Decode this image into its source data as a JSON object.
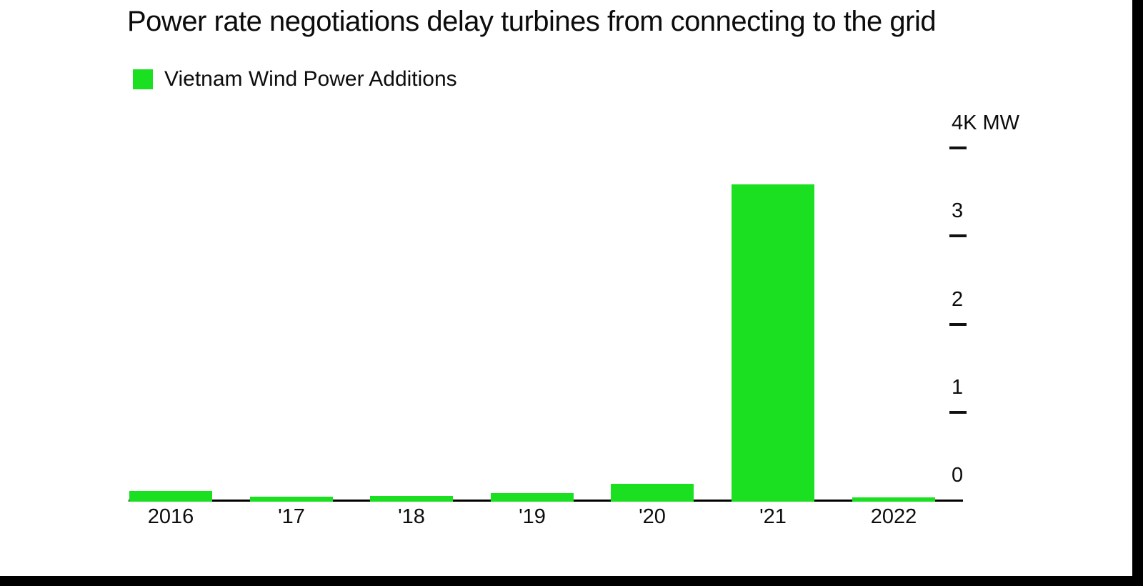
{
  "page": {
    "background": "#ffffff",
    "frame_color": "#000000",
    "text_color": "#0c0c0c"
  },
  "title": "Power rate negotiations delay turbines from connecting to the grid",
  "legend": {
    "label": "Vietnam Wind Power Additions",
    "swatch_color": "#1bdf21"
  },
  "chart_data": {
    "type": "bar",
    "title": "Power rate negotiations delay turbines from connecting to the grid",
    "series_name": "Vietnam Wind Power Additions",
    "unit": "MW",
    "categories": [
      "2016",
      "'17",
      "'18",
      "'19",
      "'20",
      "'21",
      "2022"
    ],
    "values": [
      105,
      40,
      50,
      80,
      185,
      3590,
      30
    ],
    "bar_color": "#1bdf21",
    "ylim": [
      0,
      4000
    ],
    "yticks": [
      {
        "value": 4000,
        "label": "4K MW"
      },
      {
        "value": 3000,
        "label": "3"
      },
      {
        "value": 2000,
        "label": "2"
      },
      {
        "value": 1000,
        "label": "1"
      },
      {
        "value": 0,
        "label": "0"
      }
    ],
    "axis_side": "right",
    "xlabel": "",
    "ylabel": "MW",
    "grid": false,
    "legend_position": "top-left"
  }
}
